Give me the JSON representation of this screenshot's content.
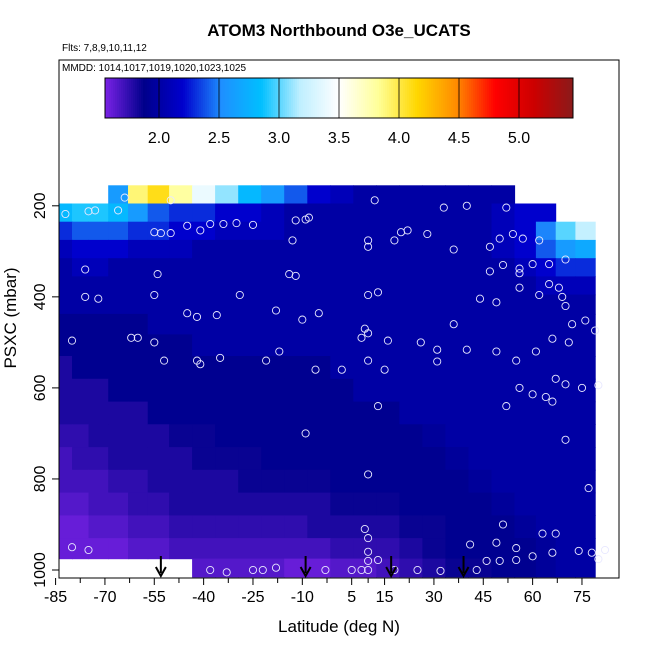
{
  "chart_data": {
    "type": "heatmap",
    "title": "ATOM3 Northbound O3e_UCATS",
    "subtitle_flights": "Flts: 7,8,9,10,11,12",
    "subtitle_dates": "MMDD: 1014,1017,1019,1020,1023,1025",
    "xlabel": "Latitude (deg N)",
    "ylabel": "PSXC (mbar)",
    "xlim": [
      -87,
      82
    ],
    "ylim": [
      1010,
      100
    ],
    "x_ticks": [
      -85,
      -70,
      -55,
      -40,
      -25,
      -10,
      5,
      15,
      30,
      45,
      60,
      75
    ],
    "y_ticks": [
      200,
      400,
      600,
      800,
      1000
    ],
    "colorbar": {
      "range": [
        1.55,
        5.45
      ],
      "ticks": [
        2.0,
        2.5,
        3.0,
        3.5,
        4.0,
        4.5,
        5.0
      ],
      "colors": [
        "#7a22e6",
        "#00008b",
        "#0000cd",
        "#1e90ff",
        "#00bfff",
        "#bfefff",
        "#ffffff",
        "#ffff99",
        "#ffd700",
        "#ff8c00",
        "#ff0000",
        "#cc0000",
        "#8b1a1a"
      ]
    },
    "arrows_latitude": [
      -53,
      -9,
      17,
      39
    ],
    "profiles_lat": [
      -82,
      -78,
      -72,
      -66,
      -60,
      -54,
      -47,
      -40,
      -33,
      -26,
      -19,
      -12,
      -5,
      2,
      9,
      16,
      23,
      30,
      37,
      44,
      51,
      58,
      64,
      70,
      76
    ],
    "pressure_levels": [
      175,
      215,
      255,
      295,
      335,
      375,
      415,
      460,
      505,
      555,
      605,
      655,
      705,
      755,
      805,
      855,
      905,
      955,
      995
    ],
    "o3_grid": [
      [
        null,
        null,
        null,
        2.6,
        3.9,
        4.1,
        3.8,
        3.4,
        3.1,
        2.8,
        2.6,
        2.4,
        2.2,
        2.1,
        2.0,
        2.0,
        2.0,
        2.0,
        2.0,
        2.0,
        2.0,
        null,
        null,
        null,
        null
      ],
      [
        2.8,
        2.9,
        2.9,
        2.8,
        2.6,
        2.4,
        2.3,
        2.3,
        2.2,
        2.2,
        2.1,
        2.0,
        2.0,
        2.0,
        2.0,
        2.0,
        2.0,
        2.0,
        2.0,
        2.0,
        2.1,
        2.2,
        2.2,
        null,
        null
      ],
      [
        2.3,
        2.4,
        2.4,
        2.4,
        2.3,
        2.3,
        2.2,
        2.2,
        2.1,
        2.1,
        2.1,
        2.0,
        2.0,
        2.0,
        2.0,
        2.0,
        2.0,
        2.0,
        2.0,
        2.0,
        2.1,
        2.2,
        2.5,
        3.0,
        3.2
      ],
      [
        2.1,
        2.2,
        2.2,
        2.2,
        2.1,
        2.1,
        2.1,
        2.0,
        2.0,
        2.0,
        2.0,
        2.0,
        2.0,
        2.0,
        2.0,
        2.0,
        2.0,
        2.0,
        2.0,
        2.0,
        2.1,
        2.2,
        2.4,
        2.6,
        2.7
      ],
      [
        2.0,
        2.1,
        2.1,
        2.0,
        2.0,
        2.0,
        2.0,
        2.0,
        2.0,
        2.0,
        2.0,
        2.0,
        2.0,
        2.0,
        2.0,
        2.0,
        2.0,
        2.0,
        2.0,
        2.0,
        2.0,
        2.1,
        2.2,
        2.3,
        2.3
      ],
      [
        2.0,
        2.0,
        2.0,
        2.0,
        2.0,
        2.0,
        2.0,
        2.0,
        2.0,
        2.0,
        2.0,
        2.0,
        2.0,
        2.0,
        2.0,
        2.0,
        2.0,
        2.0,
        2.0,
        2.0,
        2.0,
        2.0,
        2.1,
        2.1,
        2.1
      ],
      [
        2.0,
        2.0,
        2.0,
        2.0,
        2.0,
        2.0,
        2.0,
        2.0,
        2.0,
        2.0,
        2.0,
        2.0,
        2.0,
        2.0,
        2.0,
        2.0,
        2.0,
        2.0,
        2.0,
        2.0,
        2.0,
        2.0,
        2.0,
        2.0,
        2.0
      ],
      [
        1.9,
        1.9,
        1.9,
        1.9,
        1.9,
        2.0,
        2.0,
        2.0,
        2.0,
        2.0,
        2.0,
        2.0,
        2.0,
        2.0,
        2.0,
        2.0,
        2.0,
        2.0,
        2.0,
        2.0,
        2.0,
        2.0,
        2.0,
        2.0,
        2.0
      ],
      [
        1.9,
        1.9,
        1.9,
        1.9,
        1.9,
        1.9,
        1.9,
        2.0,
        2.0,
        2.0,
        2.0,
        2.0,
        2.0,
        2.0,
        2.0,
        2.0,
        2.0,
        2.0,
        2.0,
        2.0,
        2.0,
        2.0,
        2.0,
        2.0,
        2.0
      ],
      [
        1.8,
        1.9,
        1.9,
        1.9,
        1.9,
        1.9,
        1.9,
        1.9,
        1.9,
        1.9,
        1.9,
        1.9,
        1.9,
        2.0,
        2.0,
        2.0,
        2.0,
        2.0,
        2.0,
        2.0,
        2.0,
        2.0,
        2.0,
        2.0,
        2.0
      ],
      [
        1.8,
        1.8,
        1.8,
        1.9,
        1.9,
        1.9,
        1.9,
        1.9,
        1.9,
        1.9,
        1.9,
        1.9,
        1.9,
        1.9,
        2.0,
        2.0,
        2.0,
        2.0,
        2.0,
        2.0,
        2.0,
        2.0,
        2.0,
        2.0,
        2.0
      ],
      [
        1.8,
        1.8,
        1.8,
        1.8,
        1.8,
        1.9,
        1.9,
        1.9,
        1.9,
        1.9,
        1.9,
        1.9,
        1.9,
        1.9,
        1.9,
        1.9,
        2.0,
        2.0,
        2.0,
        2.0,
        2.0,
        2.0,
        2.0,
        2.0,
        2.0
      ],
      [
        1.75,
        1.75,
        1.8,
        1.8,
        1.8,
        1.8,
        1.85,
        1.85,
        1.9,
        1.9,
        1.9,
        1.9,
        1.9,
        1.9,
        1.9,
        1.9,
        1.9,
        1.95,
        2.0,
        2.0,
        2.0,
        2.0,
        2.0,
        2.0,
        2.0
      ],
      [
        1.7,
        1.75,
        1.75,
        1.8,
        1.8,
        1.8,
        1.8,
        1.85,
        1.85,
        1.85,
        1.9,
        1.9,
        1.9,
        1.9,
        1.9,
        1.9,
        1.9,
        1.9,
        1.95,
        2.0,
        2.0,
        2.0,
        2.0,
        2.0,
        2.0
      ],
      [
        1.7,
        1.7,
        1.7,
        1.75,
        1.75,
        1.8,
        1.8,
        1.8,
        1.8,
        1.85,
        1.85,
        1.85,
        1.85,
        1.9,
        1.9,
        1.9,
        1.9,
        1.9,
        1.9,
        1.95,
        2.0,
        2.0,
        2.0,
        2.0,
        2.0
      ],
      [
        1.65,
        1.65,
        1.7,
        1.7,
        1.75,
        1.75,
        1.8,
        1.8,
        1.8,
        1.8,
        1.8,
        1.8,
        1.8,
        1.85,
        1.85,
        1.85,
        1.9,
        1.9,
        1.9,
        1.9,
        1.95,
        2.0,
        2.0,
        2.0,
        2.0
      ],
      [
        1.6,
        1.6,
        1.65,
        1.65,
        1.7,
        1.7,
        1.75,
        1.75,
        1.75,
        1.75,
        1.75,
        1.75,
        1.8,
        1.8,
        1.8,
        1.8,
        1.85,
        1.85,
        1.9,
        1.9,
        1.9,
        1.95,
        2.0,
        2.0,
        2.0
      ],
      [
        1.6,
        1.6,
        1.6,
        1.6,
        1.65,
        1.65,
        1.7,
        1.7,
        1.7,
        1.7,
        1.7,
        1.7,
        1.7,
        1.75,
        1.75,
        1.75,
        1.8,
        1.85,
        1.9,
        1.9,
        1.9,
        1.9,
        1.95,
        2.0,
        2.0
      ],
      [
        null,
        null,
        null,
        null,
        null,
        null,
        null,
        1.65,
        1.65,
        1.65,
        1.65,
        1.6,
        1.6,
        1.65,
        1.65,
        1.7,
        1.75,
        1.8,
        1.85,
        1.85,
        1.9,
        1.9,
        1.95,
        2.0,
        2.0
      ]
    ],
    "sample_points": [
      [
        -64,
        182
      ],
      [
        -50,
        188
      ],
      [
        -66,
        210
      ],
      [
        -82,
        218
      ],
      [
        -75,
        212
      ],
      [
        -73,
        210
      ],
      [
        -25,
        242
      ],
      [
        -12,
        232
      ],
      [
        -9,
        230
      ],
      [
        -8,
        226
      ],
      [
        12,
        188
      ],
      [
        33,
        204
      ],
      [
        40,
        200
      ],
      [
        52,
        204
      ],
      [
        -30,
        238
      ],
      [
        -34,
        240
      ],
      [
        -38,
        240
      ],
      [
        -45,
        244
      ],
      [
        -50,
        260
      ],
      [
        -53,
        260
      ],
      [
        -55,
        258
      ],
      [
        -41,
        254
      ],
      [
        22,
        254
      ],
      [
        20,
        258
      ],
      [
        28,
        262
      ],
      [
        54,
        262
      ],
      [
        57,
        272
      ],
      [
        62,
        276
      ],
      [
        -13,
        276
      ],
      [
        10,
        276
      ],
      [
        10,
        290
      ],
      [
        18,
        276
      ],
      [
        36,
        296
      ],
      [
        50,
        272
      ],
      [
        47,
        290
      ],
      [
        -86,
        330
      ],
      [
        -76,
        340
      ],
      [
        -54,
        350
      ],
      [
        -14,
        350
      ],
      [
        -12,
        354
      ],
      [
        47,
        344
      ],
      [
        51,
        330
      ],
      [
        56,
        338
      ],
      [
        56,
        348
      ],
      [
        60,
        328
      ],
      [
        65,
        328
      ],
      [
        70,
        318
      ],
      [
        -76,
        400
      ],
      [
        -72,
        404
      ],
      [
        -55,
        396
      ],
      [
        -29,
        396
      ],
      [
        -18,
        430
      ],
      [
        -5,
        436
      ],
      [
        13,
        390
      ],
      [
        10,
        396
      ],
      [
        -45,
        436
      ],
      [
        -36,
        440
      ],
      [
        -42,
        444
      ],
      [
        -10,
        450
      ],
      [
        -80,
        496
      ],
      [
        -62,
        490
      ],
      [
        -60,
        490
      ],
      [
        -55,
        500
      ],
      [
        8,
        490
      ],
      [
        10,
        480
      ],
      [
        9,
        470
      ],
      [
        16,
        496
      ],
      [
        26,
        500
      ],
      [
        31,
        516
      ],
      [
        36,
        460
      ],
      [
        44,
        404
      ],
      [
        49,
        412
      ],
      [
        56,
        380
      ],
      [
        65,
        372
      ],
      [
        68,
        380
      ],
      [
        62,
        396
      ],
      [
        69,
        400
      ],
      [
        70,
        420
      ],
      [
        72,
        460
      ],
      [
        76,
        452
      ],
      [
        79,
        474
      ],
      [
        -52,
        540
      ],
      [
        -42,
        540
      ],
      [
        -41,
        548
      ],
      [
        -35,
        534
      ],
      [
        -21,
        540
      ],
      [
        -17,
        520
      ],
      [
        -6,
        560
      ],
      [
        2,
        560
      ],
      [
        10,
        540
      ],
      [
        15,
        560
      ],
      [
        31,
        542
      ],
      [
        40,
        516
      ],
      [
        49,
        520
      ],
      [
        55,
        540
      ],
      [
        61,
        520
      ],
      [
        66,
        492
      ],
      [
        71,
        500
      ],
      [
        67,
        580
      ],
      [
        70,
        592
      ],
      [
        75,
        600
      ],
      [
        80,
        594
      ],
      [
        56,
        600
      ],
      [
        60,
        614
      ],
      [
        64,
        620
      ],
      [
        66,
        630
      ],
      [
        52,
        640
      ],
      [
        13,
        640
      ],
      [
        -9,
        700
      ],
      [
        70,
        714
      ],
      [
        10,
        790
      ],
      [
        77,
        820
      ],
      [
        67,
        920
      ],
      [
        63,
        920
      ],
      [
        51,
        900
      ],
      [
        49,
        940
      ],
      [
        55,
        952
      ],
      [
        -80,
        950
      ],
      [
        -75,
        956
      ],
      [
        -38,
        1000
      ],
      [
        -33,
        1005
      ],
      [
        -25,
        1000
      ],
      [
        -22,
        1000
      ],
      [
        -18,
        995
      ],
      [
        -3,
        1000
      ],
      [
        5,
        1000
      ],
      [
        8,
        1000
      ],
      [
        10,
        1000
      ],
      [
        10,
        980
      ],
      [
        10,
        960
      ],
      [
        13,
        978
      ],
      [
        18,
        1000
      ],
      [
        25,
        1000
      ],
      [
        32,
        1002
      ],
      [
        43,
        1000
      ],
      [
        46,
        980
      ],
      [
        50,
        980
      ],
      [
        55,
        978
      ],
      [
        60,
        970
      ],
      [
        66,
        962
      ],
      [
        74,
        958
      ],
      [
        78,
        962
      ],
      [
        80,
        976
      ],
      [
        82,
        956
      ],
      [
        9,
        910
      ],
      [
        10,
        930
      ],
      [
        41,
        944
      ]
    ]
  }
}
